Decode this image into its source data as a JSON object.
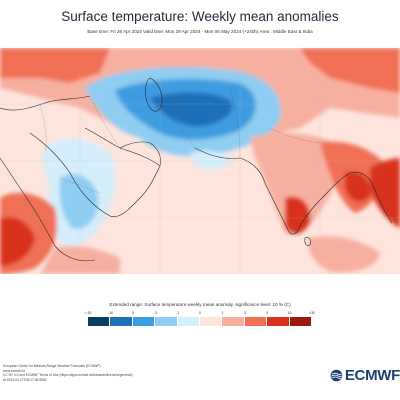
{
  "header": {
    "title": "Surface temperature: Weekly mean anomalies",
    "subtitle": "Base time: Fri 26 Apr 2024 Valid time: Mon 29 Apr 2024 - Mon 06 May 2024 (+240h) Area : Middle East & India"
  },
  "legend": {
    "caption": "Extended range: Surface temperature weekly mean anomaly, significance level: 10 % (C)",
    "ticks": [
      "<-30",
      "-10",
      "-5",
      "-3",
      "-1",
      "0",
      "1",
      "3",
      "5",
      "10",
      ">30"
    ],
    "colors": [
      "#0b3d5c",
      "#1d6fb8",
      "#3c9de0",
      "#8fcdf2",
      "#d5eefb",
      "#fde5dd",
      "#f7b0a0",
      "#f07057",
      "#d8321c",
      "#9e1a0e"
    ]
  },
  "footer": {
    "lines": [
      "European Centre for Medium-Range Weather Forecasts (ECMWF)",
      "www.ecmwf.int",
      "CC BY 4.0 and ECMWF Terms of Use (https://apps.ecmwf.int/datasets/licences/general/)",
      "at 2024-04-27T05:17:36.556Z"
    ]
  },
  "logo": {
    "text": "ECMWF",
    "icon": "ecmwf-swirl-icon"
  }
}
